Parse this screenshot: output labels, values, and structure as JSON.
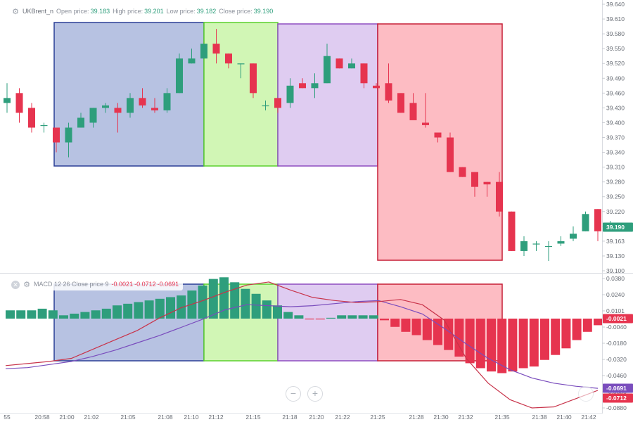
{
  "legend_price": {
    "symbol": "UKBrent_n",
    "open_label": "Open price:",
    "open": "39.183",
    "high_label": "High price:",
    "high": "39.201",
    "low_label": "Low price:",
    "low": "39.182",
    "close_label": "Close price:",
    "close": "39.190"
  },
  "legend_macd": {
    "name": "MACD 12 26 Close price 9",
    "v1": "-0.0021",
    "v2": "-0.0712",
    "v3": "-0.0691"
  },
  "last_price_tag": "39.190",
  "macd_tags": [
    "-0.0021",
    "-0.0691",
    "-0.0712"
  ],
  "colors": {
    "up": "#2e9e7c",
    "down": "#e6344f",
    "signal": "#7a4dbd",
    "macd_line": "#c8334a"
  },
  "zoom_controls": [
    "−",
    "+"
  ],
  "chart_data": [
    {
      "type": "candlestick",
      "ylim": [
        39.1,
        39.64
      ],
      "y_ticks": [
        "39.640",
        "39.610",
        "39.580",
        "39.550",
        "39.520",
        "39.490",
        "39.460",
        "39.430",
        "39.400",
        "39.370",
        "39.340",
        "39.310",
        "39.280",
        "39.250",
        "39.220",
        "39.190",
        "39.163",
        "39.130",
        "39.100"
      ],
      "candles": [
        {
          "o": 39.44,
          "h": 39.48,
          "l": 39.42,
          "c": 39.45
        },
        {
          "o": 39.46,
          "h": 39.47,
          "l": 39.4,
          "c": 39.42
        },
        {
          "o": 39.43,
          "h": 39.44,
          "l": 39.38,
          "c": 39.39
        },
        {
          "o": 39.395,
          "h": 39.4,
          "l": 39.38,
          "c": 39.395
        },
        {
          "o": 39.39,
          "h": 39.39,
          "l": 39.34,
          "c": 39.36
        },
        {
          "o": 39.36,
          "h": 39.4,
          "l": 39.33,
          "c": 39.39
        },
        {
          "o": 39.39,
          "h": 39.42,
          "l": 39.39,
          "c": 39.41
        },
        {
          "o": 39.4,
          "h": 39.43,
          "l": 39.39,
          "c": 39.43
        },
        {
          "o": 39.43,
          "h": 39.44,
          "l": 39.42,
          "c": 39.435
        },
        {
          "o": 39.43,
          "h": 39.44,
          "l": 39.38,
          "c": 39.42
        },
        {
          "o": 39.42,
          "h": 39.46,
          "l": 39.41,
          "c": 39.45
        },
        {
          "o": 39.45,
          "h": 39.47,
          "l": 39.43,
          "c": 39.435
        },
        {
          "o": 39.43,
          "h": 39.45,
          "l": 39.42,
          "c": 39.425
        },
        {
          "o": 39.425,
          "h": 39.47,
          "l": 39.42,
          "c": 39.46
        },
        {
          "o": 39.46,
          "h": 39.54,
          "l": 39.46,
          "c": 39.53
        },
        {
          "o": 39.52,
          "h": 39.55,
          "l": 39.52,
          "c": 39.53
        },
        {
          "o": 39.53,
          "h": 39.56,
          "l": 39.53,
          "c": 39.56
        },
        {
          "o": 39.56,
          "h": 39.59,
          "l": 39.52,
          "c": 39.54
        },
        {
          "o": 39.54,
          "h": 39.54,
          "l": 39.51,
          "c": 39.52
        },
        {
          "o": 39.52,
          "h": 39.52,
          "l": 39.49,
          "c": 39.52
        },
        {
          "o": 39.52,
          "h": 39.52,
          "l": 39.45,
          "c": 39.46
        },
        {
          "o": 39.435,
          "h": 39.445,
          "l": 39.425,
          "c": 39.435
        },
        {
          "o": 39.45,
          "h": 39.45,
          "l": 39.42,
          "c": 39.43
        },
        {
          "o": 39.44,
          "h": 39.49,
          "l": 39.43,
          "c": 39.475
        },
        {
          "o": 39.48,
          "h": 39.49,
          "l": 39.47,
          "c": 39.47
        },
        {
          "o": 39.47,
          "h": 39.5,
          "l": 39.45,
          "c": 39.48
        },
        {
          "o": 39.48,
          "h": 39.56,
          "l": 39.48,
          "c": 39.535
        },
        {
          "o": 39.53,
          "h": 39.53,
          "l": 39.51,
          "c": 39.51
        },
        {
          "o": 39.51,
          "h": 39.53,
          "l": 39.51,
          "c": 39.52
        },
        {
          "o": 39.52,
          "h": 39.52,
          "l": 39.47,
          "c": 39.48
        },
        {
          "o": 39.475,
          "h": 39.48,
          "l": 39.47,
          "c": 39.47
        },
        {
          "o": 39.48,
          "h": 39.52,
          "l": 39.44,
          "c": 39.445
        },
        {
          "o": 39.46,
          "h": 39.46,
          "l": 39.42,
          "c": 39.42
        },
        {
          "o": 39.44,
          "h": 39.46,
          "l": 39.41,
          "c": 39.405
        },
        {
          "o": 39.4,
          "h": 39.46,
          "l": 39.39,
          "c": 39.395
        },
        {
          "o": 39.38,
          "h": 39.38,
          "l": 39.36,
          "c": 39.37
        },
        {
          "o": 39.37,
          "h": 39.38,
          "l": 39.3,
          "c": 39.3
        },
        {
          "o": 39.31,
          "h": 39.31,
          "l": 39.29,
          "c": 39.29
        },
        {
          "o": 39.3,
          "h": 39.3,
          "l": 39.25,
          "c": 39.27
        },
        {
          "o": 39.28,
          "h": 39.28,
          "l": 39.25,
          "c": 39.275
        },
        {
          "o": 39.28,
          "h": 39.3,
          "l": 39.21,
          "c": 39.22
        },
        {
          "o": 39.22,
          "h": 39.22,
          "l": 39.14,
          "c": 39.14
        },
        {
          "o": 39.14,
          "h": 39.17,
          "l": 39.13,
          "c": 39.16
        },
        {
          "o": 39.155,
          "h": 39.16,
          "l": 39.14,
          "c": 39.155
        },
        {
          "o": 39.15,
          "h": 39.16,
          "l": 39.12,
          "c": 39.15
        },
        {
          "o": 39.155,
          "h": 39.17,
          "l": 39.15,
          "c": 39.16
        },
        {
          "o": 39.165,
          "h": 39.19,
          "l": 39.16,
          "c": 39.175
        },
        {
          "o": 39.18,
          "h": 39.22,
          "l": 39.18,
          "c": 39.215
        },
        {
          "o": 39.225,
          "h": 39.225,
          "l": 39.16,
          "c": 39.18
        },
        {
          "o": 39.183,
          "h": 39.201,
          "l": 39.182,
          "c": 39.19
        }
      ]
    },
    {
      "type": "bar",
      "name": "MACD 12 26 Close price 9",
      "ylim": [
        -0.088,
        0.038
      ],
      "y_ticks": [
        "0.0380",
        "0.0240",
        "0.0101",
        "-0.0040",
        "-0.0180",
        "-0.0320",
        "-0.0460",
        "-0.0600",
        "-0.0880"
      ],
      "histogram": [
        0.005,
        0.005,
        0.005,
        0.006,
        0.005,
        0.002,
        0.003,
        0.004,
        0.005,
        0.006,
        0.008,
        0.009,
        0.01,
        0.011,
        0.012,
        0.013,
        0.014,
        0.017,
        0.02,
        0.024,
        0.025,
        0.022,
        0.018,
        0.015,
        0.011,
        0.008,
        0.004,
        0.002,
        -0.0005,
        -0.0005,
        0.0005,
        0.002,
        0.002,
        0.002,
        0.002,
        -0.001,
        -0.005,
        -0.008,
        -0.01,
        -0.013,
        -0.016,
        -0.019,
        -0.023,
        -0.027,
        -0.03,
        -0.032,
        -0.033,
        -0.032,
        -0.03,
        -0.029,
        -0.025,
        -0.022,
        -0.018,
        -0.013,
        -0.008,
        -0.004,
        -0.002
      ],
      "macd_line": [
        -0.047,
        -0.045,
        -0.043,
        -0.04,
        -0.031,
        -0.022,
        -0.013,
        -0.001,
        0.009,
        0.016,
        0.024,
        0.031,
        0.034,
        0.026,
        0.019,
        0.016,
        0.014,
        0.015,
        0.017,
        0.012,
        -0.003,
        -0.04,
        -0.064,
        -0.08,
        -0.088,
        -0.087,
        -0.079,
        -0.071
      ],
      "signal_line": [
        -0.05,
        -0.049,
        -0.046,
        -0.043,
        -0.038,
        -0.032,
        -0.025,
        -0.018,
        -0.01,
        -0.002,
        0.007,
        0.012,
        0.011,
        0.01,
        0.011,
        0.013,
        0.015,
        0.016,
        0.01,
        0.003,
        -0.011,
        -0.026,
        -0.04,
        -0.051,
        -0.059,
        -0.064,
        -0.067,
        -0.069
      ]
    }
  ],
  "time_axis": [
    "55",
    "20:58",
    "21:00",
    "21:02",
    "21:05",
    "21:08",
    "21:10",
    "21:12",
    "21:15",
    "21:18",
    "21:20",
    "21:22",
    "21:25",
    "21:28",
    "21:30",
    "21:32",
    "21:35",
    "21:38",
    "21:40",
    "21:42"
  ]
}
